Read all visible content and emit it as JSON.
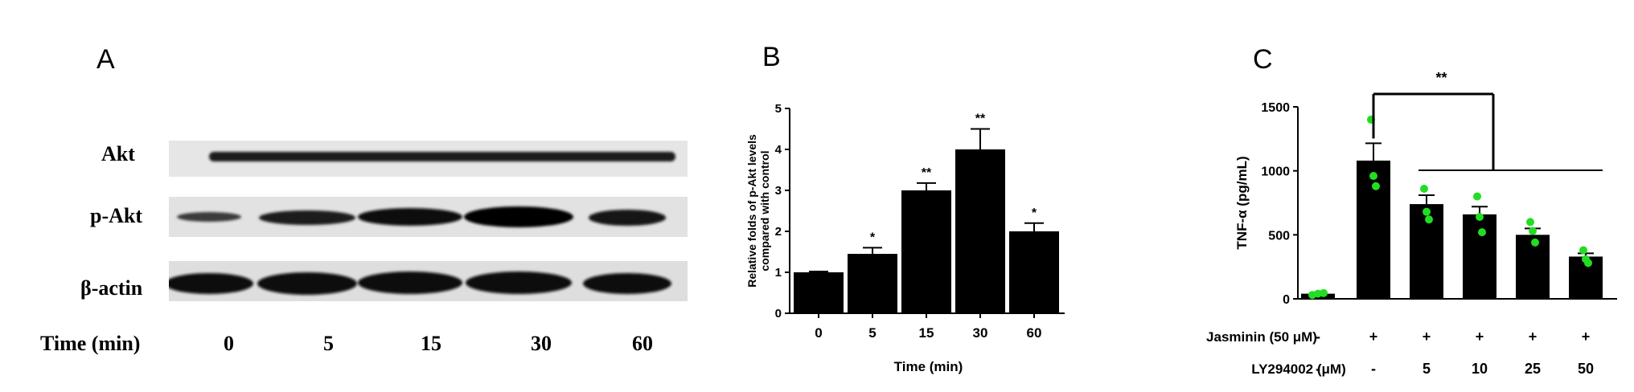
{
  "panels": {
    "a": {
      "letter": "A",
      "rows": [
        "Akt",
        "p-Akt",
        "β-actin"
      ],
      "time_label": "Time (min)",
      "times": [
        "0",
        "5",
        "15",
        "30",
        "60"
      ]
    },
    "b": {
      "letter": "B"
    },
    "c": {
      "letter": "C"
    }
  },
  "chart_data": [
    {
      "type": "bar",
      "panel": "B",
      "categories": [
        "0",
        "5",
        "15",
        "30",
        "60"
      ],
      "values": [
        1.0,
        1.45,
        3.0,
        4.0,
        2.0
      ],
      "errors": [
        0.02,
        0.15,
        0.18,
        0.5,
        0.2
      ],
      "annotations": [
        "",
        "*",
        "**",
        "**",
        "*"
      ],
      "xlabel": "Time (min)",
      "ylabel": "Relative folds of p-Akt levels compared with control",
      "ylim": [
        0,
        5
      ],
      "yticks": [
        "0",
        "1",
        "2",
        "3",
        "4",
        "5"
      ],
      "bar_color": "#000000"
    },
    {
      "type": "bar",
      "panel": "C",
      "categories": [
        "1",
        "2",
        "3",
        "4",
        "5",
        "6"
      ],
      "values": [
        40,
        1080,
        740,
        660,
        500,
        330
      ],
      "errors": [
        8,
        135,
        70,
        60,
        50,
        25
      ],
      "points": [
        [
          30,
          40,
          45
        ],
        [
          1400,
          960,
          880
        ],
        [
          860,
          680,
          620
        ],
        [
          800,
          640,
          520
        ],
        [
          600,
          530,
          440
        ],
        [
          380,
          310,
          280
        ]
      ],
      "xlabel": "",
      "ylabel": "TNF-α (pg/mL)",
      "ylim": [
        0,
        1500
      ],
      "yticks": [
        "0",
        "500",
        "1000",
        "1500"
      ],
      "significance": "**",
      "factor_rows": [
        {
          "label": "Jasminin (50 μM)",
          "values": [
            "-",
            "+",
            "+",
            "+",
            "+",
            "+"
          ]
        },
        {
          "label": "LY294002 (μM)",
          "values": [
            "-",
            "-",
            "5",
            "10",
            "25",
            "50"
          ]
        }
      ],
      "bar_color": "#000000",
      "point_color": "#22dd22"
    }
  ]
}
